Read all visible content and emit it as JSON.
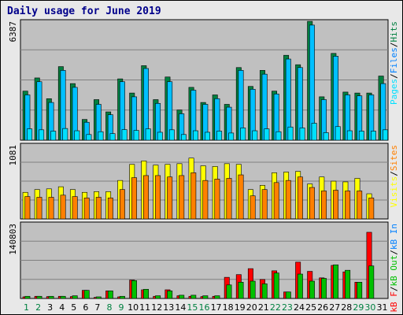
{
  "chart_data": {
    "type": "bar",
    "title": "Daily usage for June 2019",
    "colors": {
      "pages": "#00e0ff",
      "files": "#00c0ff",
      "hits": "#008040",
      "visits": "#ffff00",
      "sites": "#ff8000",
      "kb_in": "#00c000",
      "kb_out": "#008040",
      "kb_f": "#ff0000"
    },
    "categories": [
      "1",
      "2",
      "3",
      "4",
      "5",
      "6",
      "7",
      "8",
      "9",
      "10",
      "11",
      "12",
      "13",
      "14",
      "15",
      "16",
      "17",
      "18",
      "19",
      "20",
      "21",
      "22",
      "23",
      "24",
      "25",
      "26",
      "27",
      "28",
      "29",
      "30",
      "31"
    ],
    "weekend_days": [
      "1",
      "2",
      "8",
      "9",
      "15",
      "16",
      "22",
      "23",
      "29",
      "30"
    ],
    "panels": [
      {
        "id": "hits-panel",
        "ymax": 6387,
        "ymax_label": "6387",
        "legend": [
          {
            "text": "Pages",
            "color": "#00e0ff"
          },
          {
            "text": "/",
            "color": "#000000"
          },
          {
            "text": "Files",
            "color": "#0080ff"
          },
          {
            "text": "/",
            "color": "#000000"
          },
          {
            "text": "Hits",
            "color": "#008040"
          }
        ],
        "series": [
          {
            "name": "Hits",
            "color": "#008040",
            "values": [
              2600,
              3300,
              2200,
              3900,
              3000,
              1100,
              2150,
              1500,
              3250,
              2500,
              3950,
              2150,
              3350,
              1600,
              2800,
              2000,
              2400,
              1900,
              3850,
              2850,
              3700,
              2600,
              4500,
              4000,
              6300,
              2300,
              4600,
              2550,
              2500,
              2500,
              3400
            ]
          },
          {
            "name": "Files",
            "color": "#00c0ff",
            "values": [
              2400,
              3100,
              2000,
              3700,
              2800,
              950,
              1900,
              1350,
              3100,
              2300,
              3800,
              1950,
              3100,
              1400,
              2650,
              1900,
              2200,
              1750,
              3700,
              2700,
              3500,
              2450,
              4300,
              3850,
              6100,
              2150,
              4450,
              2400,
              2350,
              2400,
              3000
            ]
          },
          {
            "name": "Pages",
            "color": "#00e0ff",
            "values": [
              600,
              550,
              480,
              620,
              500,
              300,
              450,
              350,
              560,
              520,
              600,
              420,
              550,
              300,
              500,
              420,
              480,
              380,
              650,
              500,
              600,
              450,
              700,
              650,
              900,
              400,
              720,
              500,
              480,
              480,
              550
            ]
          }
        ]
      },
      {
        "id": "visits-panel",
        "ymax": 1081,
        "ymax_label": "1081",
        "legend": [
          {
            "text": "Visits",
            "color": "#ffff00"
          },
          {
            "text": "/",
            "color": "#000000"
          },
          {
            "text": "Sites",
            "color": "#ff8000"
          }
        ],
        "series": [
          {
            "name": "Visits",
            "color": "#ffff00",
            "values": [
              380,
              420,
              430,
              460,
              420,
              380,
              390,
              390,
              550,
              780,
              830,
              770,
              780,
              790,
              870,
              760,
              750,
              790,
              780,
              420,
              480,
              660,
              670,
              680,
              500,
              600,
              540,
              530,
              580,
              360,
              0
            ]
          },
          {
            "name": "Sites",
            "color": "#ff8000",
            "values": [
              320,
              310,
              310,
              340,
              320,
              300,
              310,
              300,
              420,
              590,
              620,
              620,
              600,
              620,
              660,
              550,
              570,
              580,
              630,
              330,
              420,
              520,
              550,
              600,
              450,
              400,
              410,
              400,
              400,
              300,
              0
            ]
          }
        ]
      },
      {
        "id": "kbytes-panel",
        "ymax": 140803,
        "ymax_label": "140803",
        "legend": [
          {
            "text": "kB F",
            "color": "#ff0000"
          },
          {
            "text": "/",
            "color": "#000000"
          },
          {
            "text": "kB Out",
            "color": "#00c000"
          },
          {
            "text": "/",
            "color": "#000000"
          },
          {
            "text": "kB In",
            "color": "#0080ff"
          }
        ],
        "series": [
          {
            "name": "kB F",
            "color": "#ff0000",
            "values": [
              3000,
              4000,
              3500,
              4000,
              3500,
              15000,
              2000,
              14000,
              3000,
              34000,
              16000,
              4000,
              16000,
              5000,
              4000,
              3500,
              4000,
              39000,
              44000,
              55000,
              35000,
              51000,
              12000,
              67000,
              50000,
              38000,
              61000,
              49000,
              30000,
              122000,
              0
            ]
          },
          {
            "name": "kB Out",
            "color": "#00c000",
            "values": [
              4000,
              4000,
              4000,
              4000,
              5000,
              15000,
              3000,
              14000,
              4000,
              33000,
              17000,
              5000,
              14000,
              6000,
              6000,
              5000,
              5000,
              25000,
              30000,
              32000,
              27000,
              47000,
              12000,
              45000,
              32000,
              37000,
              62000,
              52000,
              30000,
              60000,
              0
            ]
          }
        ]
      }
    ],
    "x_tick_colors": {
      "weekday": "#000000",
      "weekend": "#008040"
    }
  }
}
